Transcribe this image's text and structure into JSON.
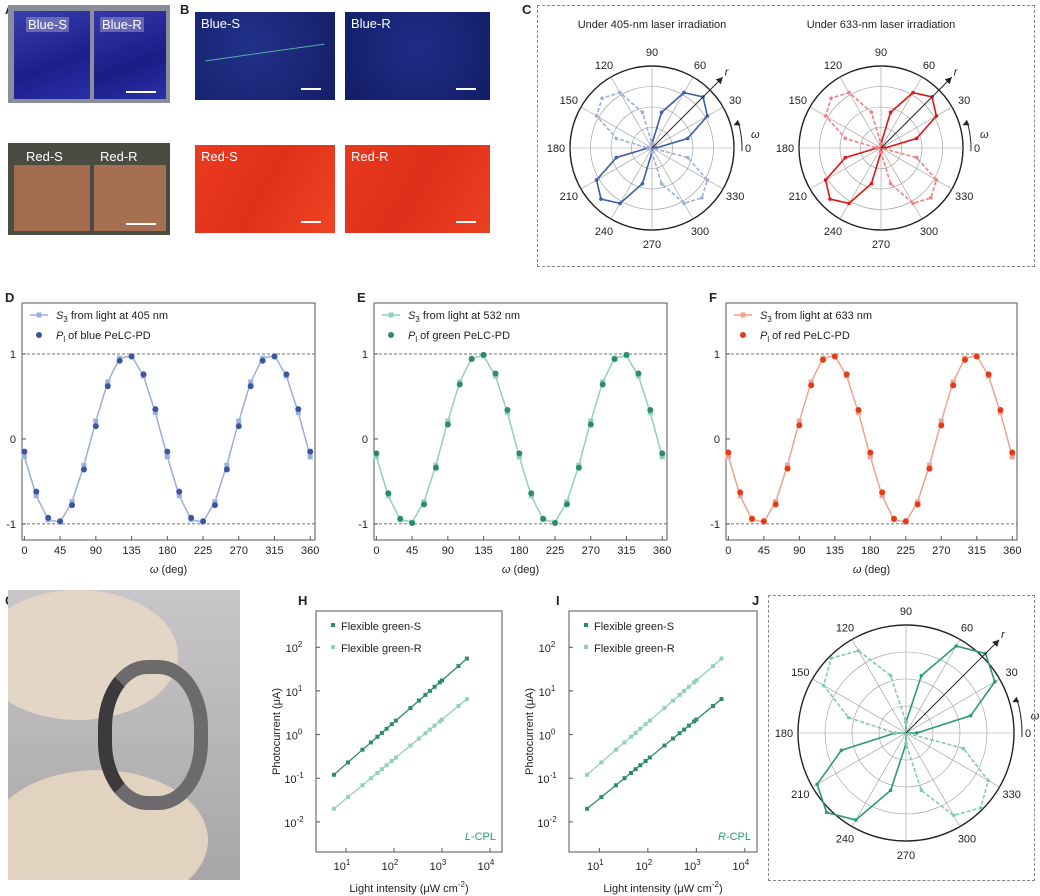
{
  "panels": {
    "A": "A",
    "B": "B",
    "C": "C",
    "D": "D",
    "E": "E",
    "F": "F",
    "G": "G",
    "H": "H",
    "I": "I",
    "J": "J"
  },
  "photos": {
    "A": {
      "top_labels": [
        "Blue-S",
        "Blue-R"
      ],
      "bottom_labels": [
        "Red-S",
        "Red-R"
      ]
    },
    "B": {
      "labels": [
        "Blue-S",
        "Blue-R",
        "Red-S",
        "Red-R"
      ]
    }
  },
  "colors": {
    "blue_line": "#9aaed8",
    "blue_dot": "#3b55a2",
    "green_line": "#8fd2b9",
    "green_dot": "#2b8c6b",
    "red_line": "#f4a08e",
    "red_dot": "#e63b12",
    "polar_blue": "#3a5ea8",
    "polar_blue_dash": "#9ab0d8",
    "polar_red": "#e01414",
    "polar_red_dash": "#f08080",
    "polar_green": "#2e9a74",
    "polar_green_dash": "#80cbb0"
  },
  "chart_data": [
    {
      "id": "C1",
      "type": "polar",
      "title": "Under 405-nm laser irradiation",
      "angle_ticks": [
        0,
        30,
        60,
        90,
        120,
        150,
        180,
        210,
        240,
        270,
        300,
        330
      ],
      "r_label": "r",
      "angle_label": "ω",
      "angles": [
        0,
        15,
        30,
        45,
        60,
        75,
        90,
        105,
        120,
        135,
        150,
        165,
        180,
        195,
        210,
        225,
        240,
        255,
        270,
        285,
        300,
        315,
        330,
        345
      ],
      "series": [
        {
          "style": "solid",
          "color": "#3a5ea8",
          "values": [
            0.05,
            0.45,
            0.78,
            0.88,
            0.78,
            0.45,
            0.05,
            0,
            0,
            0,
            0,
            0,
            0.05,
            0.45,
            0.78,
            0.88,
            0.78,
            0.45,
            0.05,
            0,
            0,
            0,
            0,
            0
          ]
        },
        {
          "style": "dashed",
          "color": "#9ab0d8",
          "values": [
            0,
            0,
            0,
            0,
            0,
            0,
            0.05,
            0.45,
            0.78,
            0.86,
            0.78,
            0.45,
            0.05,
            0,
            0,
            0,
            0,
            0,
            0.05,
            0.45,
            0.78,
            0.86,
            0.78,
            0.45
          ]
        }
      ]
    },
    {
      "id": "C2",
      "type": "polar",
      "title": "Under 633-nm laser irradiation",
      "angle_ticks": [
        0,
        30,
        60,
        90,
        120,
        150,
        180,
        210,
        240,
        270,
        300,
        330
      ],
      "r_label": "r",
      "angle_label": "ω",
      "angles": [
        0,
        15,
        30,
        45,
        60,
        75,
        90,
        105,
        120,
        135,
        150,
        165,
        180,
        195,
        210,
        225,
        240,
        255,
        270,
        285,
        300,
        315,
        330,
        345
      ],
      "series": [
        {
          "style": "solid",
          "color": "#e01414",
          "values": [
            0.05,
            0.45,
            0.78,
            0.88,
            0.78,
            0.45,
            0.05,
            0,
            0,
            0,
            0,
            0,
            0.05,
            0.45,
            0.78,
            0.88,
            0.78,
            0.45,
            0.05,
            0,
            0,
            0,
            0,
            0
          ]
        },
        {
          "style": "dashed",
          "color": "#f08080",
          "values": [
            0,
            0,
            0,
            0,
            0,
            0,
            0.05,
            0.45,
            0.78,
            0.86,
            0.78,
            0.45,
            0.05,
            0,
            0,
            0,
            0,
            0,
            0.05,
            0.45,
            0.78,
            0.86,
            0.78,
            0.45
          ]
        }
      ]
    },
    {
      "id": "D",
      "type": "line",
      "xlabel": "ω (deg)",
      "xticks": [
        0,
        45,
        90,
        135,
        180,
        225,
        270,
        315,
        360
      ],
      "yticks": [
        -1,
        0,
        1
      ],
      "xlim": [
        -3,
        366
      ],
      "ylim": [
        -1.19,
        1.6
      ],
      "ref_lines": [
        1,
        -1
      ],
      "x": [
        0,
        15,
        30,
        45,
        60,
        75,
        90,
        105,
        120,
        135,
        150,
        165,
        180,
        195,
        210,
        225,
        240,
        255,
        270,
        285,
        300,
        315,
        330,
        345,
        360
      ],
      "series": [
        {
          "sym": "S",
          "sub": "3",
          "name": " from light at 405 nm",
          "marker": "square",
          "color": "#9aaed8",
          "values": [
            -0.21,
            -0.67,
            -0.95,
            -0.98,
            -0.74,
            -0.31,
            0.21,
            0.67,
            0.95,
            0.98,
            0.74,
            0.31,
            -0.21,
            -0.67,
            -0.95,
            -0.98,
            -0.74,
            -0.31,
            0.21,
            0.67,
            0.95,
            0.98,
            0.74,
            0.31,
            -0.21
          ]
        },
        {
          "sym": "P",
          "sub": "l",
          "name": " of blue PeLC-PD",
          "marker": "circle",
          "color": "#3b55a2",
          "values": [
            -0.15,
            -0.62,
            -0.93,
            -0.97,
            -0.78,
            -0.36,
            0.15,
            0.62,
            0.92,
            0.97,
            0.76,
            0.35,
            -0.15,
            -0.62,
            -0.93,
            -0.97,
            -0.78,
            -0.36,
            0.15,
            0.62,
            0.92,
            0.97,
            0.76,
            0.35,
            -0.15
          ]
        }
      ]
    },
    {
      "id": "E",
      "type": "line",
      "xlabel": "ω (deg)",
      "xticks": [
        0,
        45,
        90,
        135,
        180,
        225,
        270,
        315,
        360
      ],
      "yticks": [
        -1,
        0,
        1
      ],
      "xlim": [
        -3,
        366
      ],
      "ylim": [
        -1.19,
        1.6
      ],
      "ref_lines": [
        1,
        -1
      ],
      "x": [
        0,
        15,
        30,
        45,
        60,
        75,
        90,
        105,
        120,
        135,
        150,
        165,
        180,
        195,
        210,
        225,
        240,
        255,
        270,
        285,
        300,
        315,
        330,
        345,
        360
      ],
      "series": [
        {
          "sym": "S",
          "sub": "3",
          "name": " from light at 532 nm",
          "marker": "square",
          "color": "#8fd2b9",
          "values": [
            -0.21,
            -0.67,
            -0.95,
            -0.98,
            -0.74,
            -0.31,
            0.21,
            0.67,
            0.95,
            0.98,
            0.74,
            0.31,
            -0.21,
            -0.67,
            -0.95,
            -0.98,
            -0.74,
            -0.31,
            0.21,
            0.67,
            0.95,
            0.98,
            0.74,
            0.31,
            -0.21
          ]
        },
        {
          "sym": "P",
          "sub": "l",
          "name": " of green PeLC-PD",
          "marker": "circle",
          "color": "#2b8c6b",
          "values": [
            -0.17,
            -0.64,
            -0.94,
            -0.99,
            -0.77,
            -0.34,
            0.17,
            0.64,
            0.94,
            0.99,
            0.77,
            0.34,
            -0.17,
            -0.64,
            -0.94,
            -0.99,
            -0.77,
            -0.34,
            0.17,
            0.64,
            0.94,
            0.99,
            0.77,
            0.34,
            -0.17
          ]
        }
      ]
    },
    {
      "id": "F",
      "type": "line",
      "xlabel": "ω (deg)",
      "xticks": [
        0,
        45,
        90,
        135,
        180,
        225,
        270,
        315,
        360
      ],
      "yticks": [
        -1,
        0,
        1
      ],
      "xlim": [
        -3,
        366
      ],
      "ylim": [
        -1.19,
        1.6
      ],
      "ref_lines": [
        1,
        -1
      ],
      "x": [
        0,
        15,
        30,
        45,
        60,
        75,
        90,
        105,
        120,
        135,
        150,
        165,
        180,
        195,
        210,
        225,
        240,
        255,
        270,
        285,
        300,
        315,
        330,
        345,
        360
      ],
      "series": [
        {
          "sym": "S",
          "sub": "3",
          "name": " from light at 633 nm",
          "marker": "square",
          "color": "#f4a08e",
          "values": [
            -0.21,
            -0.67,
            -0.95,
            -0.98,
            -0.74,
            -0.31,
            0.21,
            0.67,
            0.95,
            0.98,
            0.74,
            0.31,
            -0.21,
            -0.67,
            -0.95,
            -0.98,
            -0.74,
            -0.31,
            0.21,
            0.67,
            0.95,
            0.98,
            0.74,
            0.31,
            -0.21
          ]
        },
        {
          "sym": "P",
          "sub": "l",
          "name": " of red PeLC-PD",
          "marker": "circle",
          "color": "#e63b12",
          "values": [
            -0.16,
            -0.63,
            -0.94,
            -0.97,
            -0.77,
            -0.35,
            0.16,
            0.63,
            0.93,
            0.97,
            0.76,
            0.34,
            -0.16,
            -0.63,
            -0.94,
            -0.97,
            -0.77,
            -0.35,
            0.16,
            0.63,
            0.93,
            0.97,
            0.76,
            0.34,
            -0.16
          ]
        }
      ]
    },
    {
      "id": "H",
      "type": "scatter",
      "xscale": "log",
      "yscale": "log",
      "xlabel": "Light intensity (μW cm",
      "xlabel_sup": "-2",
      "xlabel_end": ")",
      "ylabel": "Photocurrent (μA)",
      "annotation_italic": "L",
      "annotation": "-CPL",
      "annotation_color": "#2b9a78",
      "xticks": [
        1,
        2,
        3,
        4
      ],
      "yticks": [
        -2,
        -1,
        0,
        1,
        2
      ],
      "xlim_log10": [
        0.375,
        4.25
      ],
      "ylim_log10": [
        -2.69,
        2.83
      ],
      "x": [
        5.6,
        11,
        22,
        33,
        45,
        56,
        70,
        90,
        110,
        220,
        330,
        450,
        560,
        700,
        900,
        1000,
        2200,
        3300
      ],
      "series": [
        {
          "name": "Flexible green-S",
          "color": "#2b8c6b",
          "values": [
            0.12,
            0.23,
            0.45,
            0.66,
            0.89,
            1.09,
            1.36,
            1.73,
            2.09,
            4.06,
            6.0,
            8.1,
            10.0,
            12.4,
            15.7,
            17.4,
            37,
            55
          ]
        },
        {
          "name": "Flexible green-R",
          "color": "#8fd2b9",
          "values": [
            0.02,
            0.037,
            0.069,
            0.1,
            0.132,
            0.161,
            0.198,
            0.248,
            0.298,
            0.56,
            0.81,
            1.07,
            1.3,
            1.6,
            2.0,
            2.21,
            4.5,
            6.5
          ]
        }
      ]
    },
    {
      "id": "I",
      "type": "scatter",
      "xscale": "log",
      "yscale": "log",
      "xlabel": "Light intensity (μW cm",
      "xlabel_sup": "-2",
      "xlabel_end": ")",
      "ylabel": "Photocurrent (μA)",
      "annotation_italic": "R",
      "annotation": "-CPL",
      "annotation_color": "#2b9a78",
      "xticks": [
        1,
        2,
        3,
        4
      ],
      "yticks": [
        -2,
        -1,
        0,
        1,
        2
      ],
      "xlim_log10": [
        0.375,
        4.25
      ],
      "ylim_log10": [
        -2.69,
        2.83
      ],
      "x": [
        5.6,
        11,
        22,
        33,
        45,
        56,
        70,
        90,
        110,
        220,
        330,
        450,
        560,
        700,
        900,
        1000,
        2200,
        3300
      ],
      "series": [
        {
          "name": "Flexible green-S",
          "color": "#2b8c6b",
          "values": [
            0.02,
            0.037,
            0.069,
            0.1,
            0.132,
            0.161,
            0.198,
            0.248,
            0.298,
            0.56,
            0.81,
            1.07,
            1.3,
            1.6,
            2.0,
            2.21,
            4.5,
            6.5
          ]
        },
        {
          "name": "Flexible green-R",
          "color": "#8fd2b9",
          "values": [
            0.12,
            0.23,
            0.45,
            0.66,
            0.89,
            1.09,
            1.36,
            1.73,
            2.09,
            4.06,
            6.0,
            8.1,
            10.0,
            12.4,
            15.7,
            17.4,
            37,
            55
          ]
        }
      ]
    },
    {
      "id": "J",
      "type": "polar",
      "title": "",
      "angle_ticks": [
        0,
        30,
        60,
        90,
        120,
        150,
        180,
        210,
        240,
        270,
        300,
        330
      ],
      "r_label": "r",
      "angle_label": "ω",
      "angles": [
        0,
        15,
        30,
        45,
        60,
        75,
        90,
        105,
        120,
        135,
        150,
        165,
        180,
        195,
        210,
        225,
        240,
        255,
        270,
        285,
        300,
        315,
        330,
        345
      ],
      "series": [
        {
          "style": "solid",
          "color": "#2e9a74",
          "values": [
            0.1,
            0.62,
            0.95,
            1.04,
            0.93,
            0.55,
            0.1,
            0,
            0,
            0,
            0,
            0,
            0.1,
            0.62,
            0.95,
            1.04,
            0.93,
            0.55,
            0.1,
            0,
            0,
            0,
            0,
            0
          ]
        },
        {
          "style": "dashed",
          "color": "#80cbb0",
          "values": [
            0,
            0,
            0,
            0,
            0,
            0,
            0.1,
            0.55,
            0.88,
            0.98,
            0.88,
            0.55,
            0.1,
            0,
            0,
            0,
            0,
            0,
            0.1,
            0.55,
            0.88,
            0.98,
            0.88,
            0.55
          ]
        }
      ]
    }
  ]
}
